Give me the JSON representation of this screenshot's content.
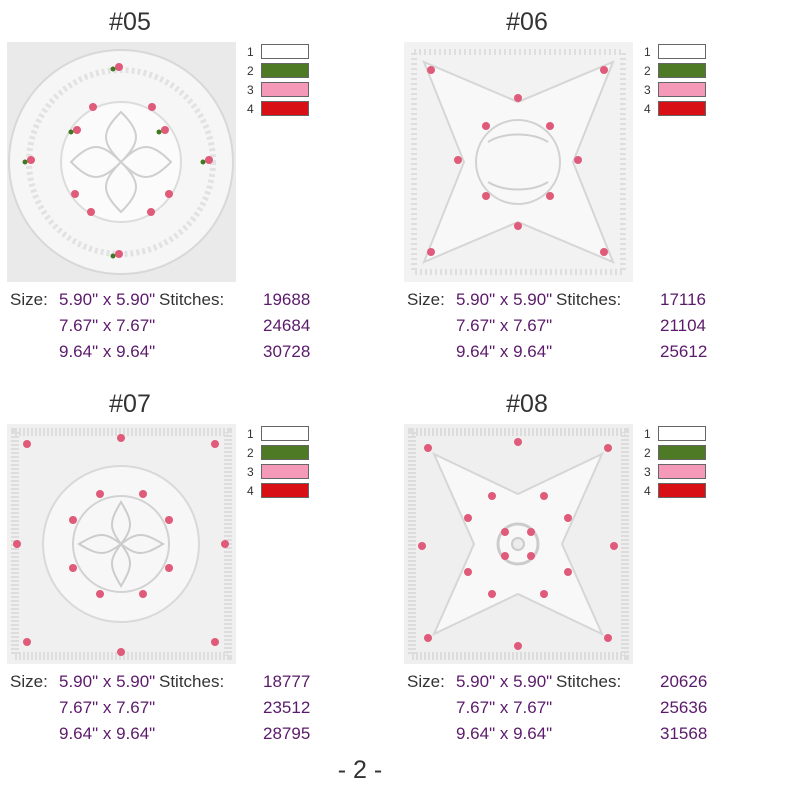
{
  "page": {
    "number": "- 2 -"
  },
  "labels": {
    "size": "Size:",
    "stitches": "Stitches:"
  },
  "swatches": [
    {
      "num": "1",
      "color": "#ffffff"
    },
    {
      "num": "2",
      "color": "#4e7a26"
    },
    {
      "num": "3",
      "color": "#f49ab8"
    },
    {
      "num": "4",
      "color": "#d90f16"
    }
  ],
  "designs": [
    {
      "title": "#05",
      "sizes": [
        "5.90\" x 5.90\"",
        "7.67\" x 7.67\"",
        "9.64\" x 9.64\""
      ],
      "stitches": [
        "19688",
        "24684",
        "30728"
      ]
    },
    {
      "title": "#06",
      "sizes": [
        "5.90\" x 5.90\"",
        "7.67\" x 7.67\"",
        "9.64\" x 9.64\""
      ],
      "stitches": [
        "17116",
        "21104",
        "25612"
      ]
    },
    {
      "title": "#07",
      "sizes": [
        "5.90\" x 5.90\"",
        "7.67\" x 7.67\"",
        "9.64\" x 9.64\""
      ],
      "stitches": [
        "18777",
        "23512",
        "28795"
      ]
    },
    {
      "title": "#08",
      "sizes": [
        "5.90\" x 5.90\"",
        "7.67\" x 7.67\"",
        "9.64\" x 9.64\""
      ],
      "stitches": [
        "20626",
        "25636",
        "31568"
      ]
    }
  ]
}
